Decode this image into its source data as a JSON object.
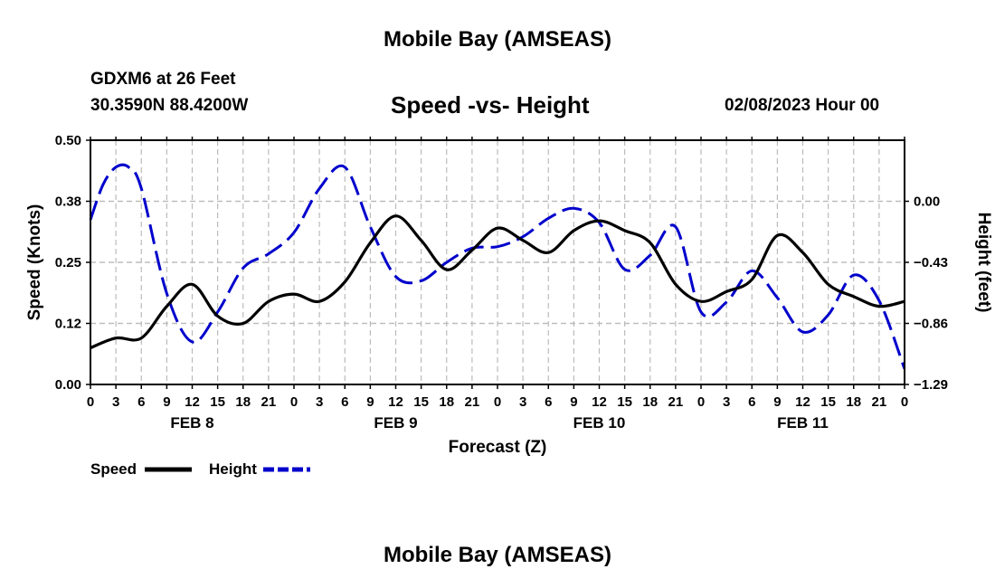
{
  "header": {
    "title": "Mobile Bay (AMSEAS)",
    "station": "GDXM6 at 26 Feet",
    "coords": "30.3590N  88.4200W",
    "subtitle": "Speed -vs- Height",
    "datetime": "02/08/2023 Hour 00"
  },
  "footer": {
    "title": "Mobile Bay (AMSEAS)"
  },
  "legend": {
    "speed_label": "Speed",
    "height_label": "Height"
  },
  "colors": {
    "speed": "#000000",
    "height": "#0000cc",
    "grid": "#bbbbbb"
  },
  "chart_data": {
    "type": "line",
    "xlabel": "Forecast (Z)",
    "ylabel_left": "Speed (Knots)",
    "ylabel_right": "Height (feet)",
    "xlim": [
      0,
      96
    ],
    "ylim_left": [
      0,
      0.5
    ],
    "ylim_right": [
      -1.29,
      0.43
    ],
    "grid": true,
    "legend_position": "bottom-left",
    "x_tick_labels": [
      "0",
      "3",
      "6",
      "9",
      "12",
      "15",
      "18",
      "21",
      "0",
      "3",
      "6",
      "9",
      "12",
      "15",
      "18",
      "21",
      "0",
      "3",
      "6",
      "9",
      "12",
      "15",
      "18",
      "21",
      "0",
      "3",
      "6",
      "9",
      "12",
      "15",
      "18",
      "21",
      "0"
    ],
    "day_labels": [
      {
        "label": "FEB 8",
        "at_hour": 12
      },
      {
        "label": "FEB 9",
        "at_hour": 36
      },
      {
        "label": "FEB 10",
        "at_hour": 60
      },
      {
        "label": "FEB 11",
        "at_hour": 84
      }
    ],
    "left_ticks": [
      "0.00",
      "0.12",
      "0.25",
      "0.38",
      "0.50"
    ],
    "left_tick_values": [
      0,
      0.125,
      0.25,
      0.375,
      0.5
    ],
    "right_ticks": [
      "0.00",
      "−0.43",
      "−0.86",
      "−1.29"
    ],
    "right_tick_values": [
      0,
      -0.43,
      -0.86,
      -1.29
    ],
    "series": [
      {
        "name": "Speed",
        "axis": "left",
        "x": [
          0,
          3,
          6,
          9,
          12,
          15,
          18,
          21,
          24,
          27,
          30,
          33,
          36,
          39,
          42,
          45,
          48,
          51,
          54,
          57,
          60,
          63,
          66,
          69,
          72,
          75,
          78,
          81,
          84,
          87,
          90,
          93,
          96
        ],
        "values": [
          0.075,
          0.095,
          0.095,
          0.16,
          0.205,
          0.14,
          0.125,
          0.17,
          0.185,
          0.17,
          0.21,
          0.29,
          0.345,
          0.295,
          0.235,
          0.275,
          0.32,
          0.295,
          0.27,
          0.315,
          0.335,
          0.315,
          0.29,
          0.205,
          0.17,
          0.19,
          0.215,
          0.305,
          0.27,
          0.205,
          0.18,
          0.16,
          0.17
        ]
      },
      {
        "name": "Height",
        "axis": "right",
        "x": [
          0,
          1.5,
          3,
          4.5,
          6,
          9,
          12,
          15,
          18,
          21,
          24,
          27,
          30,
          33,
          36,
          39,
          42,
          45,
          48,
          51,
          54,
          57,
          60,
          63,
          66,
          69,
          72,
          75,
          78,
          81,
          84,
          87,
          90,
          93,
          96
        ],
        "values": [
          -0.13,
          0.12,
          0.24,
          0.24,
          0.09,
          -0.65,
          -0.99,
          -0.78,
          -0.47,
          -0.37,
          -0.22,
          0.09,
          0.24,
          -0.18,
          -0.53,
          -0.56,
          -0.43,
          -0.33,
          -0.32,
          -0.25,
          -0.12,
          -0.05,
          -0.15,
          -0.48,
          -0.38,
          -0.18,
          -0.78,
          -0.71,
          -0.49,
          -0.68,
          -0.92,
          -0.8,
          -0.52,
          -0.7,
          -1.18
        ]
      }
    ]
  }
}
